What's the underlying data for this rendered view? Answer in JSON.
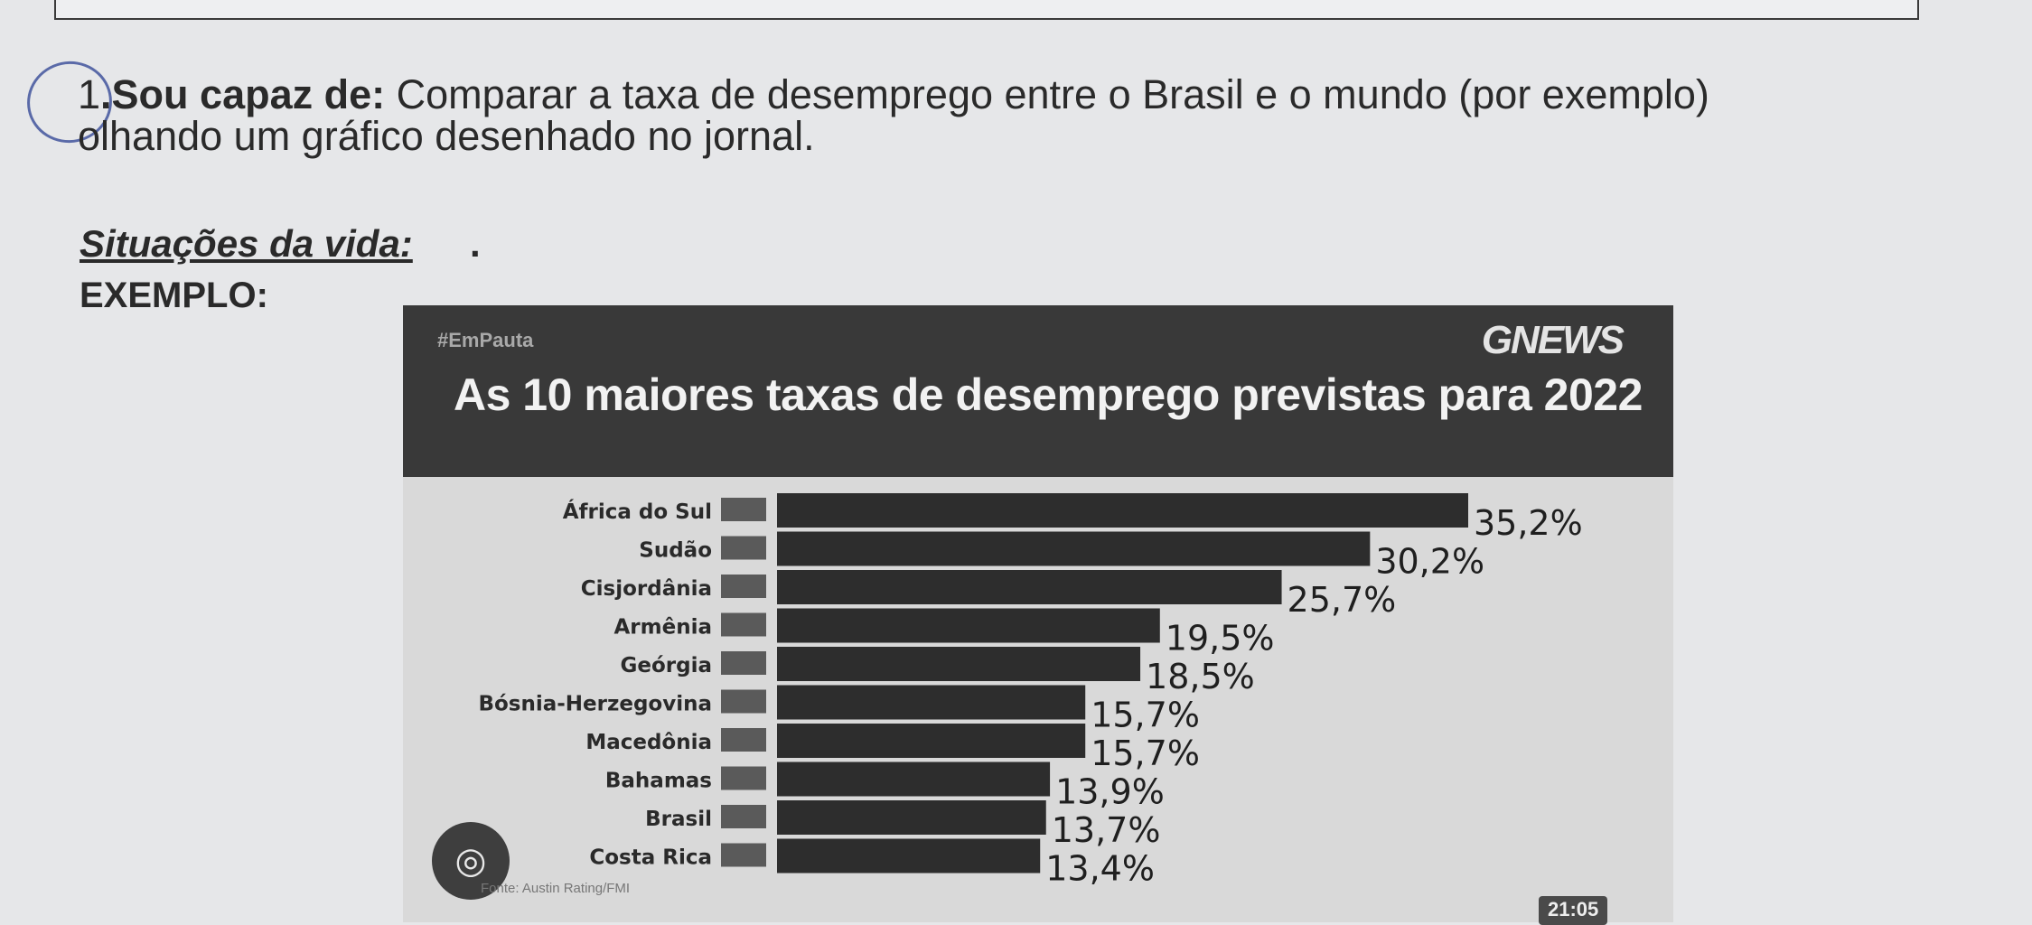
{
  "question": {
    "number": "1",
    "lead": "Sou capaz de:",
    "line1_rest": " Comparar a taxa de desemprego entre o Brasil e o mundo (por exemplo)",
    "line2": "olhando um gráfico desenhado no jornal."
  },
  "section": {
    "title": "Situações da vida:",
    "dot": ".",
    "example_label": "EXEMPLO:"
  },
  "card": {
    "hashtag": "#EmPauta",
    "logo": "GNEWS",
    "source": "Fonte: Austin Rating/FMI",
    "time": "21:05"
  },
  "chart_data": {
    "type": "bar",
    "orientation": "horizontal",
    "title": "As 10 maiores taxas de desemprego previstas para 2022",
    "categories": [
      "África do Sul",
      "Sudão",
      "Cisjordânia",
      "Armênia",
      "Geórgia",
      "Bósnia-Herzegovina",
      "Macedônia",
      "Bahamas",
      "Brasil",
      "Costa Rica"
    ],
    "values": [
      35.2,
      30.2,
      25.7,
      19.5,
      18.5,
      15.7,
      15.7,
      13.9,
      13.7,
      13.4
    ],
    "value_labels": [
      "35,2%",
      "30,2%",
      "25,7%",
      "19,5%",
      "18,5%",
      "15,7%",
      "15,7%",
      "13,9%",
      "13,7%",
      "13,4%"
    ],
    "xlim": [
      0,
      35.2
    ],
    "grid": false,
    "colors": {
      "bar": "#2d2d2d",
      "header": "#393939",
      "background": "#d9d9d9"
    }
  }
}
